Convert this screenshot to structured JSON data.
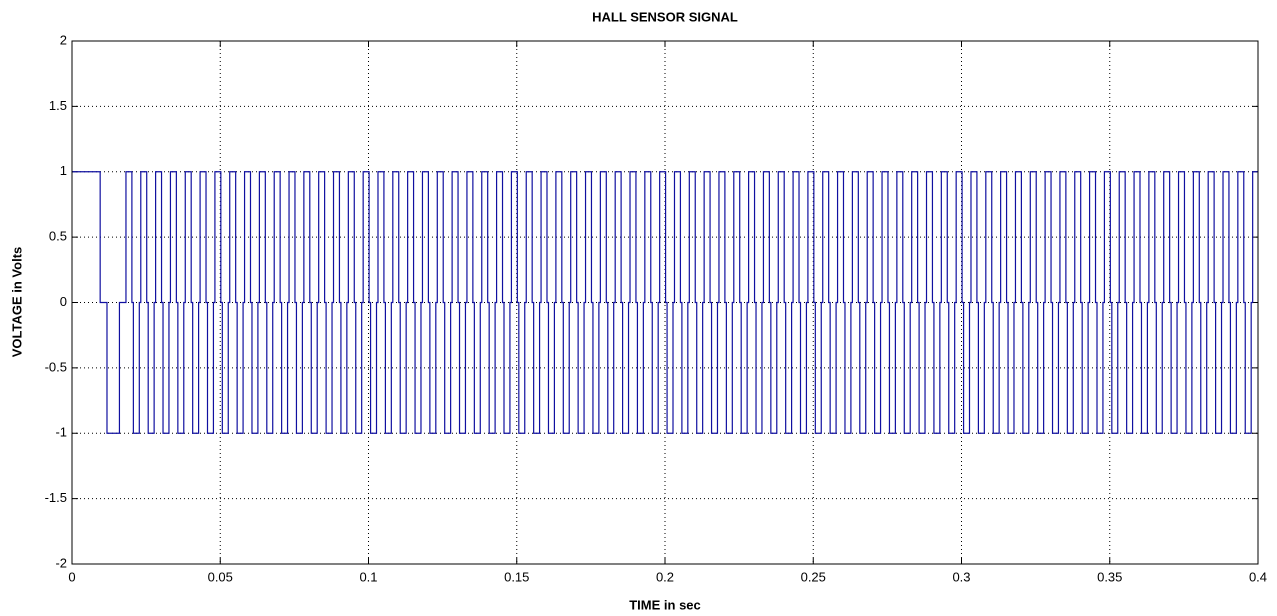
{
  "chart_data": {
    "type": "line",
    "title": "HALL SENSOR SIGNAL",
    "x_label": "TIME in sec",
    "y_label": "VOLTAGE in Volts",
    "drawstyle": "steps-post",
    "color": "#1010a0",
    "grid": true,
    "xlim": [
      0,
      0.4
    ],
    "ylim": [
      -2,
      2
    ],
    "xticks": [
      0,
      0.05,
      0.1,
      0.15,
      0.2,
      0.25,
      0.3,
      0.35,
      0.4
    ],
    "yticks": [
      -2,
      -1.5,
      -1,
      -0.5,
      0,
      0.5,
      1,
      1.5,
      2
    ],
    "x": [
      0,
      0.0095,
      0.0118,
      0.016,
      0.0182,
      0.0202,
      0.0207,
      0.0227,
      0.0232,
      0.0252,
      0.0257,
      0.0277,
      0.0282,
      0.0302,
      0.0307,
      0.0327,
      0.0332,
      0.0352,
      0.0357,
      0.0377,
      0.0382,
      0.0402,
      0.0407,
      0.0427,
      0.0432,
      0.0452,
      0.0457,
      0.0477,
      0.0482,
      0.0502,
      0.0507,
      0.0527,
      0.0532,
      0.0552,
      0.0557,
      0.0577,
      0.0582,
      0.0602,
      0.0607,
      0.0627,
      0.0632,
      0.0652,
      0.0657,
      0.0677,
      0.0682,
      0.0702,
      0.0707,
      0.0727,
      0.0732,
      0.0752,
      0.0757,
      0.0777,
      0.0782,
      0.0802,
      0.0807,
      0.0827,
      0.0832,
      0.0852,
      0.0857,
      0.0877,
      0.0882,
      0.0902,
      0.0907,
      0.0927,
      0.0932,
      0.0952,
      0.0957,
      0.0977,
      0.0982,
      0.1002,
      0.1007,
      0.1027,
      0.1032,
      0.1052,
      0.1057,
      0.1077,
      0.1082,
      0.1102,
      0.1107,
      0.1127,
      0.1132,
      0.1152,
      0.1157,
      0.1177,
      0.1182,
      0.1202,
      0.1207,
      0.1227,
      0.1232,
      0.1252,
      0.1257,
      0.1277,
      0.1282,
      0.1302,
      0.1307,
      0.1327,
      0.1332,
      0.1352,
      0.1357,
      0.1377,
      0.1382,
      0.1402,
      0.1407,
      0.1427,
      0.1432,
      0.1452,
      0.1457,
      0.1477,
      0.1482,
      0.1502,
      0.1507,
      0.1527,
      0.1532,
      0.1552,
      0.1557,
      0.1577,
      0.1582,
      0.1602,
      0.1607,
      0.1627,
      0.1632,
      0.1652,
      0.1657,
      0.1677,
      0.1682,
      0.1702,
      0.1707,
      0.1727,
      0.1732,
      0.1752,
      0.1757,
      0.1777,
      0.1782,
      0.1802,
      0.1807,
      0.1827,
      0.1832,
      0.1852,
      0.1857,
      0.1877,
      0.1882,
      0.1902,
      0.1907,
      0.1927,
      0.1932,
      0.1952,
      0.1957,
      0.1977,
      0.1982,
      0.2002,
      0.2007,
      0.2027,
      0.2032,
      0.2052,
      0.2057,
      0.2077,
      0.2082,
      0.2102,
      0.2107,
      0.2127,
      0.2132,
      0.2152,
      0.2157,
      0.2177,
      0.2182,
      0.2202,
      0.2207,
      0.2227,
      0.2232,
      0.2252,
      0.2257,
      0.2277,
      0.2282,
      0.2302,
      0.2307,
      0.2327,
      0.2332,
      0.2352,
      0.2357,
      0.2377,
      0.2382,
      0.2402,
      0.2407,
      0.2427,
      0.2432,
      0.2452,
      0.2457,
      0.2477,
      0.2482,
      0.2502,
      0.2507,
      0.2527,
      0.2532,
      0.2552,
      0.2557,
      0.2577,
      0.2582,
      0.2602,
      0.2607,
      0.2627,
      0.2632,
      0.2652,
      0.2657,
      0.2677,
      0.2682,
      0.2702,
      0.2707,
      0.2727,
      0.2732,
      0.2752,
      0.2757,
      0.2777,
      0.2782,
      0.2802,
      0.2807,
      0.2827,
      0.2832,
      0.2852,
      0.2857,
      0.2877,
      0.2882,
      0.2902,
      0.2907,
      0.2927,
      0.2932,
      0.2952,
      0.2957,
      0.2977,
      0.2982,
      0.3002,
      0.3007,
      0.3027,
      0.3032,
      0.3052,
      0.3057,
      0.3077,
      0.3082,
      0.3102,
      0.3107,
      0.3127,
      0.3132,
      0.3152,
      0.3157,
      0.3177,
      0.3182,
      0.3202,
      0.3207,
      0.3227,
      0.3232,
      0.3252,
      0.3257,
      0.3277,
      0.3282,
      0.3302,
      0.3307,
      0.3327,
      0.3332,
      0.3352,
      0.3357,
      0.3377,
      0.3382,
      0.3402,
      0.3407,
      0.3427,
      0.3432,
      0.3452,
      0.3457,
      0.3477,
      0.3482,
      0.3502,
      0.3507,
      0.3527,
      0.3532,
      0.3552,
      0.3557,
      0.3577,
      0.3582,
      0.3602,
      0.3607,
      0.3627,
      0.3632,
      0.3652,
      0.3657,
      0.3677,
      0.3682,
      0.3702,
      0.3707,
      0.3727,
      0.3732,
      0.3752,
      0.3757,
      0.3777,
      0.3782,
      0.3802,
      0.3807,
      0.3827,
      0.3832,
      0.3852,
      0.3857,
      0.3877,
      0.3882,
      0.3902,
      0.3907,
      0.3927,
      0.3932,
      0.3952,
      0.3957,
      0.3977,
      0.3982
    ],
    "values": [
      1,
      0,
      -1,
      0,
      1,
      0,
      -1,
      0,
      1,
      0,
      -1,
      0,
      1,
      0,
      -1,
      0,
      1,
      0,
      -1,
      0,
      1,
      0,
      -1,
      0,
      1,
      0,
      -1,
      0,
      1,
      0,
      -1,
      0,
      1,
      0,
      -1,
      0,
      1,
      0,
      -1,
      0,
      1,
      0,
      -1,
      0,
      1,
      0,
      -1,
      0,
      1,
      0,
      -1,
      0,
      1,
      0,
      -1,
      0,
      1,
      0,
      -1,
      0,
      1,
      0,
      -1,
      0,
      1,
      0,
      -1,
      0,
      1,
      0,
      -1,
      0,
      1,
      0,
      -1,
      0,
      1,
      0,
      -1,
      0,
      1,
      0,
      -1,
      0,
      1,
      0,
      -1,
      0,
      1,
      0,
      -1,
      0,
      1,
      0,
      -1,
      0,
      1,
      0,
      -1,
      0,
      1,
      0,
      -1,
      0,
      1,
      0,
      -1,
      0,
      1,
      0,
      -1,
      0,
      1,
      0,
      -1,
      0,
      1,
      0,
      -1,
      0,
      1,
      0,
      -1,
      0,
      1,
      0,
      -1,
      0,
      1,
      0,
      -1,
      0,
      1,
      0,
      -1,
      0,
      1,
      0,
      -1,
      0,
      1,
      0,
      -1,
      0,
      1,
      0,
      -1,
      0,
      1,
      0,
      -1,
      0,
      1,
      0,
      -1,
      0,
      1,
      0,
      -1,
      0,
      1,
      0,
      -1,
      0,
      1,
      0,
      -1,
      0,
      1,
      0,
      -1,
      0,
      1,
      0,
      -1,
      0,
      1,
      0,
      -1,
      0,
      1,
      0,
      -1,
      0,
      1,
      0,
      -1,
      0,
      1,
      0,
      -1,
      0,
      1,
      0,
      -1,
      0,
      1,
      0,
      -1,
      0,
      1,
      0,
      -1,
      0,
      1,
      0,
      -1,
      0,
      1,
      0,
      -1,
      0,
      1,
      0,
      -1,
      0,
      1,
      0,
      -1,
      0,
      1,
      0,
      -1,
      0,
      1,
      0,
      -1,
      0,
      1,
      0,
      -1,
      0,
      1,
      0,
      -1,
      0,
      1,
      0,
      -1,
      0,
      1,
      0,
      -1,
      0,
      1,
      0,
      -1,
      0,
      1,
      0,
      -1,
      0,
      1,
      0,
      -1,
      0,
      1,
      0,
      -1,
      0,
      1,
      0,
      -1,
      0,
      1,
      0,
      -1,
      0,
      1,
      0,
      -1,
      0,
      1,
      0,
      -1,
      0,
      1,
      0,
      -1,
      0,
      1,
      0,
      -1,
      0,
      1,
      0,
      -1,
      0,
      1,
      0,
      -1,
      0,
      1,
      0,
      -1,
      0,
      1,
      0,
      -1,
      0,
      1,
      0,
      -1,
      0,
      1,
      0,
      -1,
      0,
      1
    ]
  }
}
